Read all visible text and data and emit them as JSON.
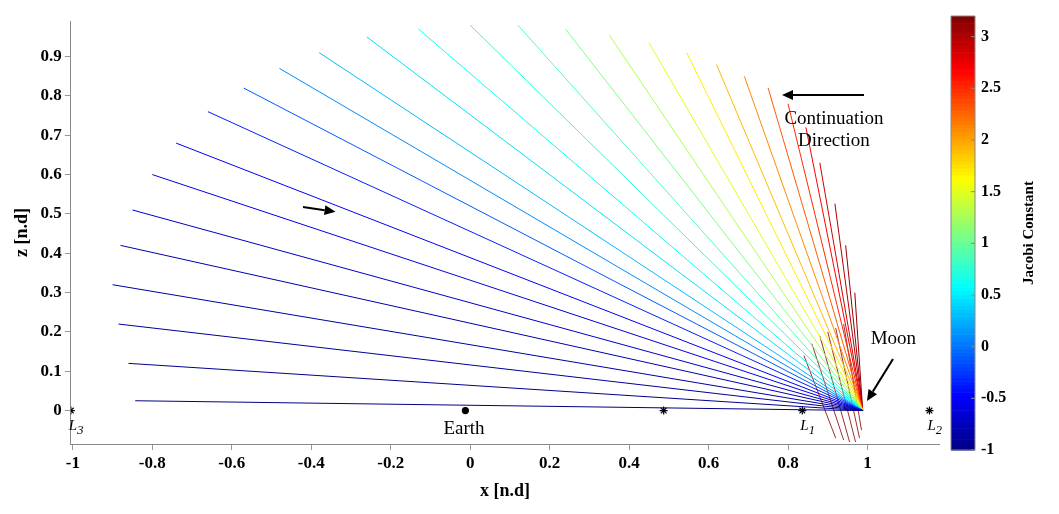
{
  "chart_data": {
    "type": "line",
    "xlabel": "x [n.d]",
    "ylabel": "z [n.d]",
    "clabel": "Jacobi Constant",
    "xlim": [
      -1.005,
      1.18
    ],
    "ylim": [
      -0.085,
      0.99
    ],
    "xticks": [
      -1,
      -0.8,
      -0.6,
      -0.4,
      -0.2,
      0,
      0.2,
      0.4,
      0.6,
      0.8,
      1
    ],
    "yticks": [
      0,
      0.1,
      0.2,
      0.3,
      0.4,
      0.5,
      0.6,
      0.7,
      0.8,
      0.9
    ],
    "clim": [
      -1,
      3.2
    ],
    "cticks": [
      -1,
      -0.5,
      0,
      0.5,
      1,
      1.5,
      2,
      2.5,
      3
    ],
    "grid": false,
    "legend": false,
    "marker": "none",
    "line_style": "solid",
    "series": [
      {
        "color": "#000080",
        "x": [
          -0.843,
          0.988
        ],
        "values": [
          0.025,
          0
        ]
      },
      {
        "color": "#00008c",
        "x": [
          -0.86,
          0.988
        ],
        "values": [
          0.12,
          0
        ]
      },
      {
        "color": "#000098",
        "x": [
          -0.885,
          0.988
        ],
        "values": [
          0.22,
          0
        ]
      },
      {
        "color": "#0000a4",
        "x": [
          -0.9,
          0.988
        ],
        "values": [
          0.32,
          0
        ]
      },
      {
        "color": "#0000b0",
        "x": [
          -0.88,
          0.988
        ],
        "values": [
          0.42,
          0
        ]
      },
      {
        "color": "#0000c8",
        "x": [
          -0.85,
          0.988
        ],
        "values": [
          0.51,
          0
        ]
      },
      {
        "color": "#0000e1",
        "x": [
          -0.8,
          0.988
        ],
        "values": [
          0.6,
          0
        ]
      },
      {
        "color": "#0000f9",
        "x": [
          -0.74,
          0.988
        ],
        "values": [
          0.68,
          0
        ]
      },
      {
        "color": "#001eff",
        "x": [
          -0.66,
          0.988
        ],
        "values": [
          0.76,
          0
        ]
      },
      {
        "color": "#005bff",
        "x": [
          -0.57,
          0.988
        ],
        "values": [
          0.82,
          0
        ]
      },
      {
        "color": "#008cff",
        "x": [
          -0.48,
          0.988
        ],
        "values": [
          0.87,
          0
        ]
      },
      {
        "color": "#00bcff",
        "x": [
          -0.38,
          0.988
        ],
        "values": [
          0.91,
          0
        ]
      },
      {
        "color": "#00e1ff",
        "x": [
          -0.26,
          0.988
        ],
        "values": [
          0.95,
          0
        ]
      },
      {
        "color": "#06fff9",
        "x": [
          -0.13,
          0.988
        ],
        "values": [
          0.97,
          0
        ]
      },
      {
        "color": "#2affd4",
        "x": [
          0,
          0.988
        ],
        "values": [
          0.98,
          0
        ]
      },
      {
        "color": "#4fffb0",
        "x": [
          0.12,
          0.988
        ],
        "values": [
          0.98,
          0
        ]
      },
      {
        "color": "#80ff80",
        "x": [
          0.24,
          0.988
        ],
        "values": [
          0.97,
          0
        ]
      },
      {
        "color": "#b0ff4f",
        "x": [
          0.35,
          0.988
        ],
        "values": [
          0.955,
          0
        ]
      },
      {
        "color": "#e1ff1e",
        "x": [
          0.45,
          0.988
        ],
        "values": [
          0.935,
          0
        ]
      },
      {
        "color": "#ffed00",
        "x": [
          0.545,
          0.988
        ],
        "values": [
          0.91,
          0
        ]
      },
      {
        "color": "#ffbc00",
        "x": [
          0.62,
          0.988
        ],
        "values": [
          0.88,
          0
        ]
      },
      {
        "color": "#ff8c00",
        "x": [
          0.69,
          0.988
        ],
        "values": [
          0.85,
          0
        ]
      },
      {
        "color": "#ff5b00",
        "x": [
          0.75,
          0.988
        ],
        "values": [
          0.82,
          0
        ]
      },
      {
        "color": "#ff2a00",
        "x": [
          0.8,
          0.988
        ],
        "values": [
          0.78,
          0
        ]
      },
      {
        "color": "#f90000",
        "x": [
          0.845,
          0.988
        ],
        "values": [
          0.72,
          0
        ]
      },
      {
        "color": "#d40000",
        "x": [
          0.88,
          0.988
        ],
        "values": [
          0.63,
          0
        ]
      },
      {
        "color": "#b00000",
        "x": [
          0.918,
          0.988
        ],
        "values": [
          0.526,
          0
        ]
      },
      {
        "color": "#980000",
        "x": [
          0.945,
          0.988
        ],
        "values": [
          0.42,
          0
        ]
      },
      {
        "color": "#8c0000",
        "x": [
          0.968,
          0.988
        ],
        "values": [
          0.3,
          0
        ]
      },
      {
        "color": "#a03030",
        "x": [
          0.84,
          0.92
        ],
        "values": [
          0.14,
          -0.07
        ]
      },
      {
        "color": "#a03030",
        "x": [
          0.86,
          0.94
        ],
        "values": [
          0.17,
          -0.075
        ]
      },
      {
        "color": "#a03030",
        "x": [
          0.88,
          0.955
        ],
        "values": [
          0.19,
          -0.08
        ]
      },
      {
        "color": "#a03030",
        "x": [
          0.9,
          0.97
        ],
        "values": [
          0.2,
          -0.08
        ]
      },
      {
        "color": "#a03030",
        "x": [
          0.92,
          0.98
        ],
        "values": [
          0.21,
          -0.07
        ]
      },
      {
        "color": "#a03030",
        "x": [
          0.94,
          0.985
        ],
        "values": [
          0.22,
          -0.05
        ]
      },
      {
        "type": "scatter",
        "marker": "cross",
        "color": "#000000",
        "x": [
          -1.005,
          0.487,
          0.836,
          1.156
        ],
        "values": [
          0,
          0,
          0,
          0
        ]
      },
      {
        "type": "scatter",
        "marker": "circle",
        "color": "#000000",
        "x": [
          -0.012
        ],
        "values": [
          0
        ]
      }
    ],
    "annotations": [
      {
        "text": "L$_{3}$",
        "x": -1.005,
        "y": 0
      },
      {
        "text": "Earth",
        "x": -0.012,
        "y": 0
      },
      {
        "text": "L$_{1}$",
        "x": 0.836,
        "y": 0
      },
      {
        "text": "L$_{2}$",
        "x": 1.156,
        "y": 0
      },
      "Moon",
      "Continuation Direction"
    ]
  }
}
